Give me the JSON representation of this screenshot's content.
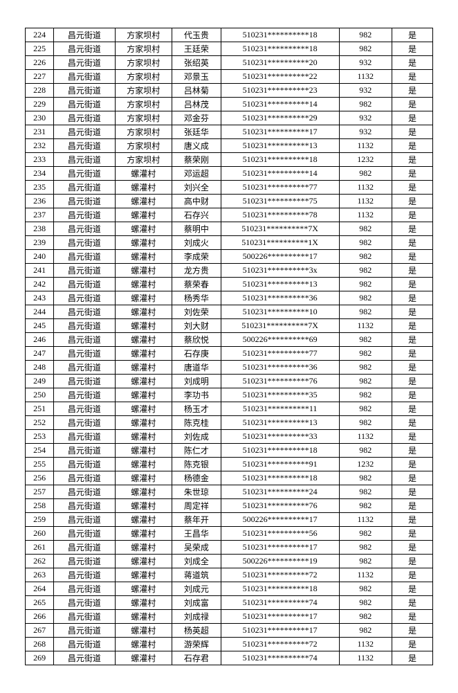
{
  "table": {
    "columns": [
      {
        "key": "idx",
        "cls": "col-idx"
      },
      {
        "key": "jd",
        "cls": "col-jd"
      },
      {
        "key": "cun",
        "cls": "col-cun"
      },
      {
        "key": "name",
        "cls": "col-name"
      },
      {
        "key": "id",
        "cls": "col-id"
      },
      {
        "key": "amt",
        "cls": "col-amt"
      },
      {
        "key": "yn",
        "cls": "col-yn"
      }
    ],
    "rows": [
      {
        "idx": "224",
        "jd": "昌元街道",
        "cun": "方家坝村",
        "name": "代玉贵",
        "id": "510231**********18",
        "amt": "982",
        "yn": "是"
      },
      {
        "idx": "225",
        "jd": "昌元街道",
        "cun": "方家坝村",
        "name": "王廷荣",
        "id": "510231**********18",
        "amt": "982",
        "yn": "是"
      },
      {
        "idx": "226",
        "jd": "昌元街道",
        "cun": "方家坝村",
        "name": "张绍英",
        "id": "510231**********20",
        "amt": "932",
        "yn": "是"
      },
      {
        "idx": "227",
        "jd": "昌元街道",
        "cun": "方家坝村",
        "name": "邓景玉",
        "id": "510231**********22",
        "amt": "1132",
        "yn": "是"
      },
      {
        "idx": "228",
        "jd": "昌元街道",
        "cun": "方家坝村",
        "name": "吕林菊",
        "id": "510231**********23",
        "amt": "932",
        "yn": "是"
      },
      {
        "idx": "229",
        "jd": "昌元街道",
        "cun": "方家坝村",
        "name": "吕林茂",
        "id": "510231**********14",
        "amt": "982",
        "yn": "是"
      },
      {
        "idx": "230",
        "jd": "昌元街道",
        "cun": "方家坝村",
        "name": "邓金芬",
        "id": "510231**********29",
        "amt": "932",
        "yn": "是"
      },
      {
        "idx": "231",
        "jd": "昌元街道",
        "cun": "方家坝村",
        "name": "张廷华",
        "id": "510231**********17",
        "amt": "932",
        "yn": "是"
      },
      {
        "idx": "232",
        "jd": "昌元街道",
        "cun": "方家坝村",
        "name": "唐义成",
        "id": "510231**********13",
        "amt": "1132",
        "yn": "是"
      },
      {
        "idx": "233",
        "jd": "昌元街道",
        "cun": "方家坝村",
        "name": "蔡荣刚",
        "id": "510231**********18",
        "amt": "1232",
        "yn": "是"
      },
      {
        "idx": "234",
        "jd": "昌元街道",
        "cun": "螺灌村",
        "name": "邓运超",
        "id": "510231**********14",
        "amt": "982",
        "yn": "是"
      },
      {
        "idx": "235",
        "jd": "昌元街道",
        "cun": "螺灌村",
        "name": "刘兴全",
        "id": "510231**********77",
        "amt": "1132",
        "yn": "是"
      },
      {
        "idx": "236",
        "jd": "昌元街道",
        "cun": "螺灌村",
        "name": "高中财",
        "id": "510231**********75",
        "amt": "1132",
        "yn": "是"
      },
      {
        "idx": "237",
        "jd": "昌元街道",
        "cun": "螺灌村",
        "name": "石存兴",
        "id": "510231**********78",
        "amt": "1132",
        "yn": "是"
      },
      {
        "idx": "238",
        "jd": "昌元街道",
        "cun": "螺灌村",
        "name": "蔡明中",
        "id": "510231**********7X",
        "amt": "982",
        "yn": "是"
      },
      {
        "idx": "239",
        "jd": "昌元街道",
        "cun": "螺灌村",
        "name": "刘成火",
        "id": "510231**********1X",
        "amt": "982",
        "yn": "是"
      },
      {
        "idx": "240",
        "jd": "昌元街道",
        "cun": "螺灌村",
        "name": "李成荣",
        "id": "500226**********17",
        "amt": "982",
        "yn": "是"
      },
      {
        "idx": "241",
        "jd": "昌元街道",
        "cun": "螺灌村",
        "name": "龙方贵",
        "id": "510231**********3x",
        "amt": "982",
        "yn": "是"
      },
      {
        "idx": "242",
        "jd": "昌元街道",
        "cun": "螺灌村",
        "name": "蔡荣春",
        "id": "510231**********13",
        "amt": "982",
        "yn": "是"
      },
      {
        "idx": "243",
        "jd": "昌元街道",
        "cun": "螺灌村",
        "name": "杨秀华",
        "id": "510231**********36",
        "amt": "982",
        "yn": "是"
      },
      {
        "idx": "244",
        "jd": "昌元街道",
        "cun": "螺灌村",
        "name": "刘佐荣",
        "id": "510231**********10",
        "amt": "982",
        "yn": "是"
      },
      {
        "idx": "245",
        "jd": "昌元街道",
        "cun": "螺灌村",
        "name": "刘大财",
        "id": "510231**********7X",
        "amt": "1132",
        "yn": "是"
      },
      {
        "idx": "246",
        "jd": "昌元街道",
        "cun": "螺灌村",
        "name": "蔡欣悦",
        "id": "500226**********69",
        "amt": "982",
        "yn": "是"
      },
      {
        "idx": "247",
        "jd": "昌元街道",
        "cun": "螺灌村",
        "name": "石存庚",
        "id": "510231**********77",
        "amt": "982",
        "yn": "是"
      },
      {
        "idx": "248",
        "jd": "昌元街道",
        "cun": "螺灌村",
        "name": "唐道华",
        "id": "510231**********36",
        "amt": "982",
        "yn": "是"
      },
      {
        "idx": "249",
        "jd": "昌元街道",
        "cun": "螺灌村",
        "name": "刘成明",
        "id": "510231**********76",
        "amt": "982",
        "yn": "是"
      },
      {
        "idx": "250",
        "jd": "昌元街道",
        "cun": "螺灌村",
        "name": "李功书",
        "id": "510231**********35",
        "amt": "982",
        "yn": "是"
      },
      {
        "idx": "251",
        "jd": "昌元街道",
        "cun": "螺灌村",
        "name": "杨玉才",
        "id": "510231**********11",
        "amt": "982",
        "yn": "是"
      },
      {
        "idx": "252",
        "jd": "昌元街道",
        "cun": "螺灌村",
        "name": "陈克桂",
        "id": "510231**********13",
        "amt": "982",
        "yn": "是"
      },
      {
        "idx": "253",
        "jd": "昌元街道",
        "cun": "螺灌村",
        "name": "刘佐成",
        "id": "510231**********33",
        "amt": "1132",
        "yn": "是"
      },
      {
        "idx": "254",
        "jd": "昌元街道",
        "cun": "螺灌村",
        "name": "陈仁才",
        "id": "510231**********18",
        "amt": "982",
        "yn": "是"
      },
      {
        "idx": "255",
        "jd": "昌元街道",
        "cun": "螺灌村",
        "name": "陈克银",
        "id": "510231**********91",
        "amt": "1232",
        "yn": "是"
      },
      {
        "idx": "256",
        "jd": "昌元街道",
        "cun": "螺灌村",
        "name": "杨德金",
        "id": "510231**********18",
        "amt": "982",
        "yn": "是"
      },
      {
        "idx": "257",
        "jd": "昌元街道",
        "cun": "螺灌村",
        "name": "朱世琼",
        "id": "510231**********24",
        "amt": "982",
        "yn": "是"
      },
      {
        "idx": "258",
        "jd": "昌元街道",
        "cun": "螺灌村",
        "name": "周定祥",
        "id": "510231**********76",
        "amt": "982",
        "yn": "是"
      },
      {
        "idx": "259",
        "jd": "昌元街道",
        "cun": "螺灌村",
        "name": "蔡年开",
        "id": "500226**********17",
        "amt": "1132",
        "yn": "是"
      },
      {
        "idx": "260",
        "jd": "昌元街道",
        "cun": "螺灌村",
        "name": "王昌华",
        "id": "510231**********56",
        "amt": "982",
        "yn": "是"
      },
      {
        "idx": "261",
        "jd": "昌元街道",
        "cun": "螺灌村",
        "name": "吴荣成",
        "id": "510231**********17",
        "amt": "982",
        "yn": "是"
      },
      {
        "idx": "262",
        "jd": "昌元街道",
        "cun": "螺灌村",
        "name": "刘成全",
        "id": "500226**********19",
        "amt": "982",
        "yn": "是"
      },
      {
        "idx": "263",
        "jd": "昌元街道",
        "cun": "螺灌村",
        "name": "蒋道筑",
        "id": "510231**********72",
        "amt": "1132",
        "yn": "是"
      },
      {
        "idx": "264",
        "jd": "昌元街道",
        "cun": "螺灌村",
        "name": "刘成元",
        "id": "510231**********18",
        "amt": "982",
        "yn": "是"
      },
      {
        "idx": "265",
        "jd": "昌元街道",
        "cun": "螺灌村",
        "name": "刘成富",
        "id": "510231**********74",
        "amt": "982",
        "yn": "是"
      },
      {
        "idx": "266",
        "jd": "昌元街道",
        "cun": "螺灌村",
        "name": "刘成禄",
        "id": "510231**********17",
        "amt": "982",
        "yn": "是"
      },
      {
        "idx": "267",
        "jd": "昌元街道",
        "cun": "螺灌村",
        "name": "杨英超",
        "id": "510231**********17",
        "amt": "982",
        "yn": "是"
      },
      {
        "idx": "268",
        "jd": "昌元街道",
        "cun": "螺灌村",
        "name": "游荣辉",
        "id": "510231**********72",
        "amt": "1132",
        "yn": "是"
      },
      {
        "idx": "269",
        "jd": "昌元街道",
        "cun": "螺灌村",
        "name": "石存君",
        "id": "510231**********74",
        "amt": "1132",
        "yn": "是"
      }
    ]
  }
}
